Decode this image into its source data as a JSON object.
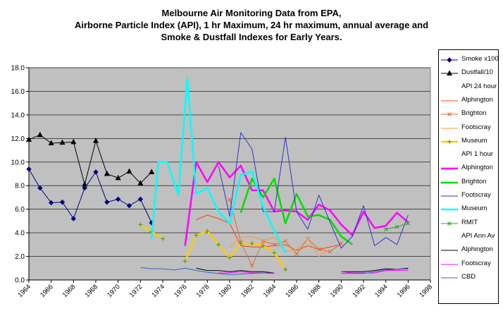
{
  "title_lines": [
    "Melbourne Air Monitoring Data from EPA,",
    "Airborne Particle Index (API), 1 hr Maximum, 24 hr maximum, annual average and",
    "Smoke & Dustfall Indexes for Early Years."
  ],
  "colors": {
    "plot_background": "#c0c0c0",
    "smoke": "#000080",
    "dustfall": "#000000",
    "api24_alphington": "#ff4500",
    "api24_brighton": "#e06a3a",
    "api24_footscray": "#ff9933",
    "api24_museum": "#ffcc00",
    "api1_alphington": "#ff00ff",
    "api1_brighton": "#00dd00",
    "api1_footscray": "#3333cc",
    "api1_museum": "#00ffff",
    "api1_rmit": "#339933",
    "apiann_alphington": "#000000",
    "apiann_footscray": "#ff00ff",
    "apiann_cbd": "#3366cc"
  },
  "chart_data": {
    "type": "line",
    "title": "Melbourne Air Monitoring Data from EPA, Airborne Particle Index (API), 1 hr Maximum, 24 hr maximum, annual average and Smoke & Dustfall Indexes for Early Years.",
    "xlabel": "",
    "ylabel": "",
    "xlim": [
      1964,
      2000
    ],
    "ylim": [
      0,
      18
    ],
    "x_ticks": [
      "1964",
      "1966",
      "1968",
      "1968",
      "1970",
      "1972",
      "1974",
      "1976",
      "1978",
      "1980",
      "1982",
      "1984",
      "1986",
      "1988",
      "1990",
      "1992",
      "1994",
      "1996",
      "1998",
      "2000"
    ],
    "y_ticks": [
      "0.0",
      "2.0",
      "4.0",
      "6.0",
      "8.0",
      "10.0",
      "12.0",
      "14.0",
      "16.0",
      "18.0"
    ],
    "grid": "horizontal",
    "legend_position": "right",
    "series": [
      {
        "name": "Smoke x100",
        "color": "smoke",
        "width": 1,
        "marker": "diamond",
        "points": [
          [
            1964,
            9.4
          ],
          [
            1965,
            7.8
          ],
          [
            1966,
            6.55
          ],
          [
            1967,
            6.6
          ],
          [
            1968,
            5.2
          ],
          [
            1969,
            7.8
          ],
          [
            1970,
            9.15
          ],
          [
            1971,
            6.6
          ],
          [
            1972,
            6.85
          ],
          [
            1973,
            6.3
          ],
          [
            1974,
            6.85
          ],
          [
            1975,
            4.85
          ]
        ]
      },
      {
        "name": "Dustfall/10",
        "color": "dustfall",
        "width": 1,
        "marker": "triangle",
        "points": [
          [
            1964,
            11.9
          ],
          [
            1965,
            12.3
          ],
          [
            1966,
            11.6
          ],
          [
            1967,
            11.65
          ],
          [
            1968,
            11.7
          ],
          [
            1969,
            8.1
          ],
          [
            1970,
            11.8
          ],
          [
            1971,
            9.0
          ],
          [
            1972,
            8.65
          ],
          [
            1973,
            9.2
          ],
          [
            1974,
            8.2
          ],
          [
            1975,
            9.15
          ]
        ]
      },
      {
        "name": "API 24 hour",
        "header": true
      },
      {
        "name": "Alphington",
        "color": "api24_alphington",
        "width": 1,
        "marker": "none",
        "points": [
          [
            1979,
            5.1
          ],
          [
            1980,
            5.5
          ],
          [
            1981,
            5.2
          ],
          [
            1982,
            4.8
          ],
          [
            1983,
            2.9
          ],
          [
            1984,
            2.8
          ],
          [
            1985,
            2.8
          ],
          [
            1986,
            2.9
          ],
          [
            1987,
            3.0
          ],
          [
            1988,
            2.5
          ],
          [
            1989,
            2.9
          ],
          [
            1990,
            2.6
          ],
          [
            1991,
            2.8
          ],
          [
            1992,
            3.0
          ]
        ]
      },
      {
        "name": "Brighton",
        "color": "api24_brighton",
        "width": 1,
        "marker": "x",
        "points": [
          [
            1982,
            6.8
          ],
          [
            1983,
            3.2
          ],
          [
            1984,
            1.2
          ],
          [
            1985,
            3.3
          ],
          [
            1986,
            3.0
          ],
          [
            1987,
            3.3
          ],
          [
            1988,
            2.2
          ],
          [
            1989,
            3.5
          ],
          [
            1990,
            2.6
          ],
          [
            1991,
            2.4
          ],
          [
            1992,
            3.1
          ]
        ]
      },
      {
        "name": "Footscray",
        "color": "api24_footscray",
        "width": 1,
        "marker": "none",
        "points": [
          [
            1982,
            2.8
          ],
          [
            1983,
            3.6
          ],
          [
            1984,
            3.7
          ],
          [
            1985,
            3.3
          ],
          [
            1986,
            3.6
          ],
          [
            1987,
            2.4
          ],
          [
            1988,
            2.6
          ],
          [
            1989,
            3.5
          ],
          [
            1990,
            2.0
          ],
          [
            1991,
            2.6
          ]
        ]
      },
      {
        "name": "Museum",
        "color": "api24_museum",
        "width": 2.5,
        "marker": "plus",
        "points": [
          [
            1974,
            4.7
          ],
          [
            1975,
            4.1
          ],
          [
            1976,
            3.5
          ],
          [
            null,
            null
          ],
          [
            1978,
            1.6
          ],
          [
            1979,
            3.8
          ],
          [
            1980,
            4.15
          ],
          [
            1981,
            3.0
          ],
          [
            1982,
            1.9
          ],
          [
            1983,
            3.1
          ],
          [
            1984,
            3.1
          ],
          [
            1985,
            2.9
          ],
          [
            1986,
            2.3
          ],
          [
            1987,
            0.9
          ]
        ]
      },
      {
        "name": "API 1 hour",
        "header": true
      },
      {
        "name": "Alphington",
        "color": "api1_alphington",
        "width": 2.5,
        "marker": "none",
        "points": [
          [
            1978,
            2.9
          ],
          [
            1979,
            10.0
          ],
          [
            1980,
            8.3
          ],
          [
            1981,
            10.0
          ],
          [
            1982,
            8.7
          ],
          [
            1983,
            9.7
          ],
          [
            1984,
            7.6
          ],
          [
            1985,
            7.6
          ],
          [
            1986,
            5.8
          ],
          [
            1987,
            5.9
          ],
          [
            1988,
            5.8
          ],
          [
            1989,
            5.1
          ],
          [
            1990,
            6.4
          ],
          [
            1991,
            5.9
          ],
          [
            1992,
            4.7
          ],
          [
            1993,
            3.8
          ],
          [
            1994,
            5.8
          ],
          [
            1995,
            4.4
          ],
          [
            1996,
            4.6
          ],
          [
            1997,
            5.7
          ],
          [
            1998,
            4.9
          ]
        ]
      },
      {
        "name": "Brighton",
        "color": "api1_brighton",
        "width": 2.5,
        "marker": "none",
        "points": [
          [
            1983,
            5.7
          ],
          [
            1984,
            8.6
          ],
          [
            1985,
            7.0
          ],
          [
            1986,
            8.6
          ],
          [
            1987,
            4.8
          ],
          [
            1988,
            7.3
          ],
          [
            1989,
            5.4
          ],
          [
            1990,
            5.5
          ],
          [
            1991,
            5.1
          ],
          [
            1992,
            3.7
          ],
          [
            1993,
            3.0
          ]
        ]
      },
      {
        "name": "Footscray",
        "color": "api1_footscray",
        "width": 1,
        "marker": "none",
        "points": [
          [
            1981,
            9.7
          ],
          [
            1982,
            5.4
          ],
          [
            1983,
            12.5
          ],
          [
            1984,
            11.1
          ],
          [
            1985,
            5.8
          ],
          [
            1986,
            5.8
          ],
          [
            1987,
            12.1
          ],
          [
            1988,
            5.8
          ],
          [
            1989,
            4.3
          ],
          [
            1990,
            7.2
          ],
          [
            1991,
            4.9
          ],
          [
            1992,
            2.7
          ],
          [
            1993,
            3.7
          ],
          [
            1994,
            6.3
          ],
          [
            1995,
            2.9
          ],
          [
            1996,
            3.6
          ],
          [
            1997,
            3.0
          ],
          [
            1998,
            5.5
          ]
        ]
      },
      {
        "name": "Museum",
        "color": "api1_museum",
        "width": 2.5,
        "marker": "none",
        "points": [
          [
            1975,
            3.5
          ],
          [
            1975.6,
            10.0
          ],
          [
            1976.4,
            10.0
          ],
          [
            1977.4,
            7.2
          ],
          [
            1978.2,
            17.1
          ],
          [
            1979,
            7.3
          ],
          [
            1980,
            7.8
          ],
          [
            1981,
            5.8
          ],
          [
            1982,
            4.8
          ],
          [
            1983,
            8.9
          ],
          [
            1984,
            9.2
          ],
          [
            1985,
            6.2
          ],
          [
            1986,
            4.2
          ],
          [
            1987,
            2.3
          ]
        ]
      },
      {
        "name": "RMIT",
        "color": "api1_rmit",
        "width": 1,
        "marker": "x",
        "points": [
          [
            1996,
            4.3
          ],
          [
            1997,
            4.5
          ],
          [
            1998,
            4.8
          ]
        ]
      },
      {
        "name": "API Ann Av",
        "header": true
      },
      {
        "name": "Alphington",
        "color": "apiann_alphington",
        "width": 1,
        "marker": "none",
        "points": [
          [
            1979,
            1.0
          ],
          [
            1980,
            0.8
          ],
          [
            1981,
            0.8
          ],
          [
            1982,
            0.7
          ],
          [
            1983,
            0.8
          ],
          [
            1984,
            0.7
          ],
          [
            1985,
            0.7
          ],
          [
            1986,
            0.6
          ],
          [
            null,
            null
          ],
          [
            1992,
            0.7
          ],
          [
            1993,
            0.7
          ],
          [
            1994,
            0.7
          ],
          [
            1995,
            0.8
          ],
          [
            1996,
            0.95
          ],
          [
            1997,
            0.9
          ],
          [
            1998,
            1.0
          ]
        ]
      },
      {
        "name": "Footscray",
        "color": "apiann_footscray",
        "width": 1,
        "marker": "none",
        "points": [
          [
            1981,
            0.6
          ],
          [
            1982,
            0.6
          ],
          [
            1983,
            0.7
          ],
          [
            1984,
            0.6
          ],
          [
            1985,
            0.6
          ],
          [
            1986,
            0.6
          ],
          [
            null,
            null
          ],
          [
            1992,
            0.7
          ],
          [
            1993,
            0.6
          ],
          [
            1994,
            0.6
          ],
          [
            1995,
            0.6
          ],
          [
            1996,
            0.8
          ],
          [
            1997,
            0.8
          ],
          [
            1998,
            0.8
          ]
        ]
      },
      {
        "name": "CBD",
        "color": "apiann_cbd",
        "width": 1,
        "marker": "none",
        "points": [
          [
            1974,
            1.05
          ],
          [
            1975,
            0.95
          ],
          [
            1976,
            0.95
          ],
          [
            1977,
            0.85
          ],
          [
            1978,
            1.0
          ],
          [
            1979,
            0.8
          ],
          [
            1980,
            0.65
          ],
          [
            1981,
            0.55
          ],
          [
            1982,
            0.45
          ],
          [
            1983,
            0.5
          ],
          [
            1984,
            0.55
          ],
          [
            1985,
            0.6
          ],
          [
            1986,
            0.55
          ],
          [
            null,
            null
          ],
          [
            1992,
            0.55
          ],
          [
            1993,
            0.55
          ],
          [
            1994,
            0.55
          ],
          [
            1995,
            0.7
          ],
          [
            1996,
            0.85
          ],
          [
            1997,
            0.9
          ],
          [
            1998,
            0.95
          ]
        ]
      }
    ]
  }
}
